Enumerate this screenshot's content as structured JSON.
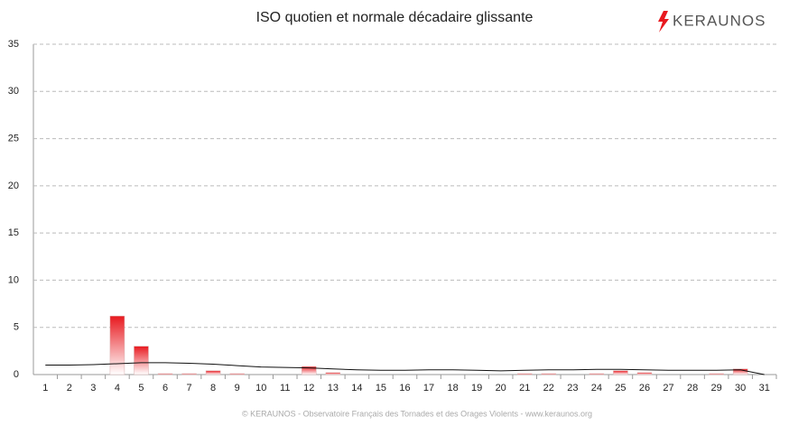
{
  "chart_data": {
    "type": "bar",
    "title": "ISO quotien et normale décadaire glissante",
    "logo": "KERAUNOS",
    "footer": "© KERAUNOS - Observatoire Français des Tornades et des Orages Violents - www.keraunos.org",
    "categories": [
      "1",
      "2",
      "3",
      "4",
      "5",
      "6",
      "7",
      "8",
      "9",
      "10",
      "11",
      "12",
      "13",
      "14",
      "15",
      "16",
      "17",
      "18",
      "19",
      "20",
      "21",
      "22",
      "23",
      "24",
      "25",
      "26",
      "27",
      "28",
      "29",
      "30",
      "31"
    ],
    "series": [
      {
        "type": "bar",
        "color": "#e8191f",
        "values": [
          0,
          0,
          0,
          6.2,
          3.0,
          0.1,
          0.1,
          0.4,
          0.1,
          0,
          0,
          0.85,
          0.2,
          0,
          0,
          0,
          0,
          0,
          0,
          0,
          0.1,
          0.1,
          0,
          0.1,
          0.4,
          0.2,
          0,
          0,
          0.1,
          0.6,
          0
        ]
      },
      {
        "type": "line",
        "color": "#111111",
        "values": [
          1.0,
          1.0,
          1.05,
          1.15,
          1.25,
          1.25,
          1.2,
          1.1,
          0.95,
          0.8,
          0.75,
          0.7,
          0.6,
          0.5,
          0.45,
          0.45,
          0.5,
          0.5,
          0.45,
          0.4,
          0.45,
          0.5,
          0.5,
          0.55,
          0.55,
          0.5,
          0.45,
          0.45,
          0.45,
          0.5,
          0.0
        ]
      }
    ],
    "ylim": [
      0,
      35
    ],
    "yticks": [
      0,
      5,
      10,
      15,
      20,
      25,
      30,
      35
    ],
    "grid": true
  }
}
